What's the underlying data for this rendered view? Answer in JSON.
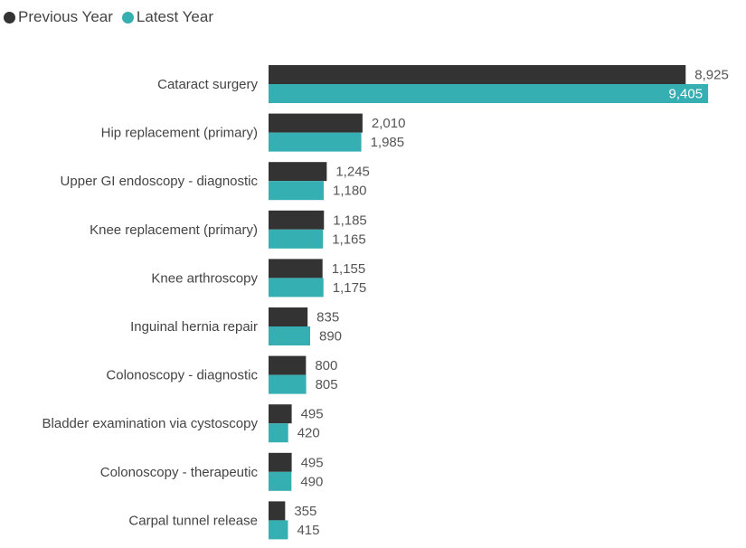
{
  "chart_data": {
    "type": "bar",
    "orientation": "horizontal",
    "categories": [
      "Cataract surgery",
      "Hip replacement (primary)",
      "Upper GI endoscopy - diagnostic",
      "Knee replacement (primary)",
      "Knee arthroscopy",
      "Inguinal hernia repair",
      "Colonoscopy - diagnostic",
      "Bladder examination via cystoscopy",
      "Colonoscopy - therapeutic",
      "Carpal tunnel release"
    ],
    "series": [
      {
        "name": "Previous Year",
        "color": "#333333",
        "values": [
          8925,
          2010,
          1245,
          1185,
          1155,
          835,
          800,
          495,
          495,
          355
        ],
        "labels": [
          "8,925",
          "2,010",
          "1,245",
          "1,185",
          "1,155",
          "835",
          "800",
          "495",
          "495",
          "355"
        ]
      },
      {
        "name": "Latest Year",
        "color": "#36AFB3",
        "values": [
          9405,
          1985,
          1180,
          1165,
          1175,
          890,
          805,
          420,
          490,
          415
        ],
        "labels": [
          "9,405",
          "1,985",
          "1,180",
          "1,165",
          "1,175",
          "890",
          "805",
          "420",
          "490",
          "415"
        ]
      }
    ],
    "xlim": [
      0,
      9500
    ],
    "legend_position": "top-left",
    "grid": false
  }
}
